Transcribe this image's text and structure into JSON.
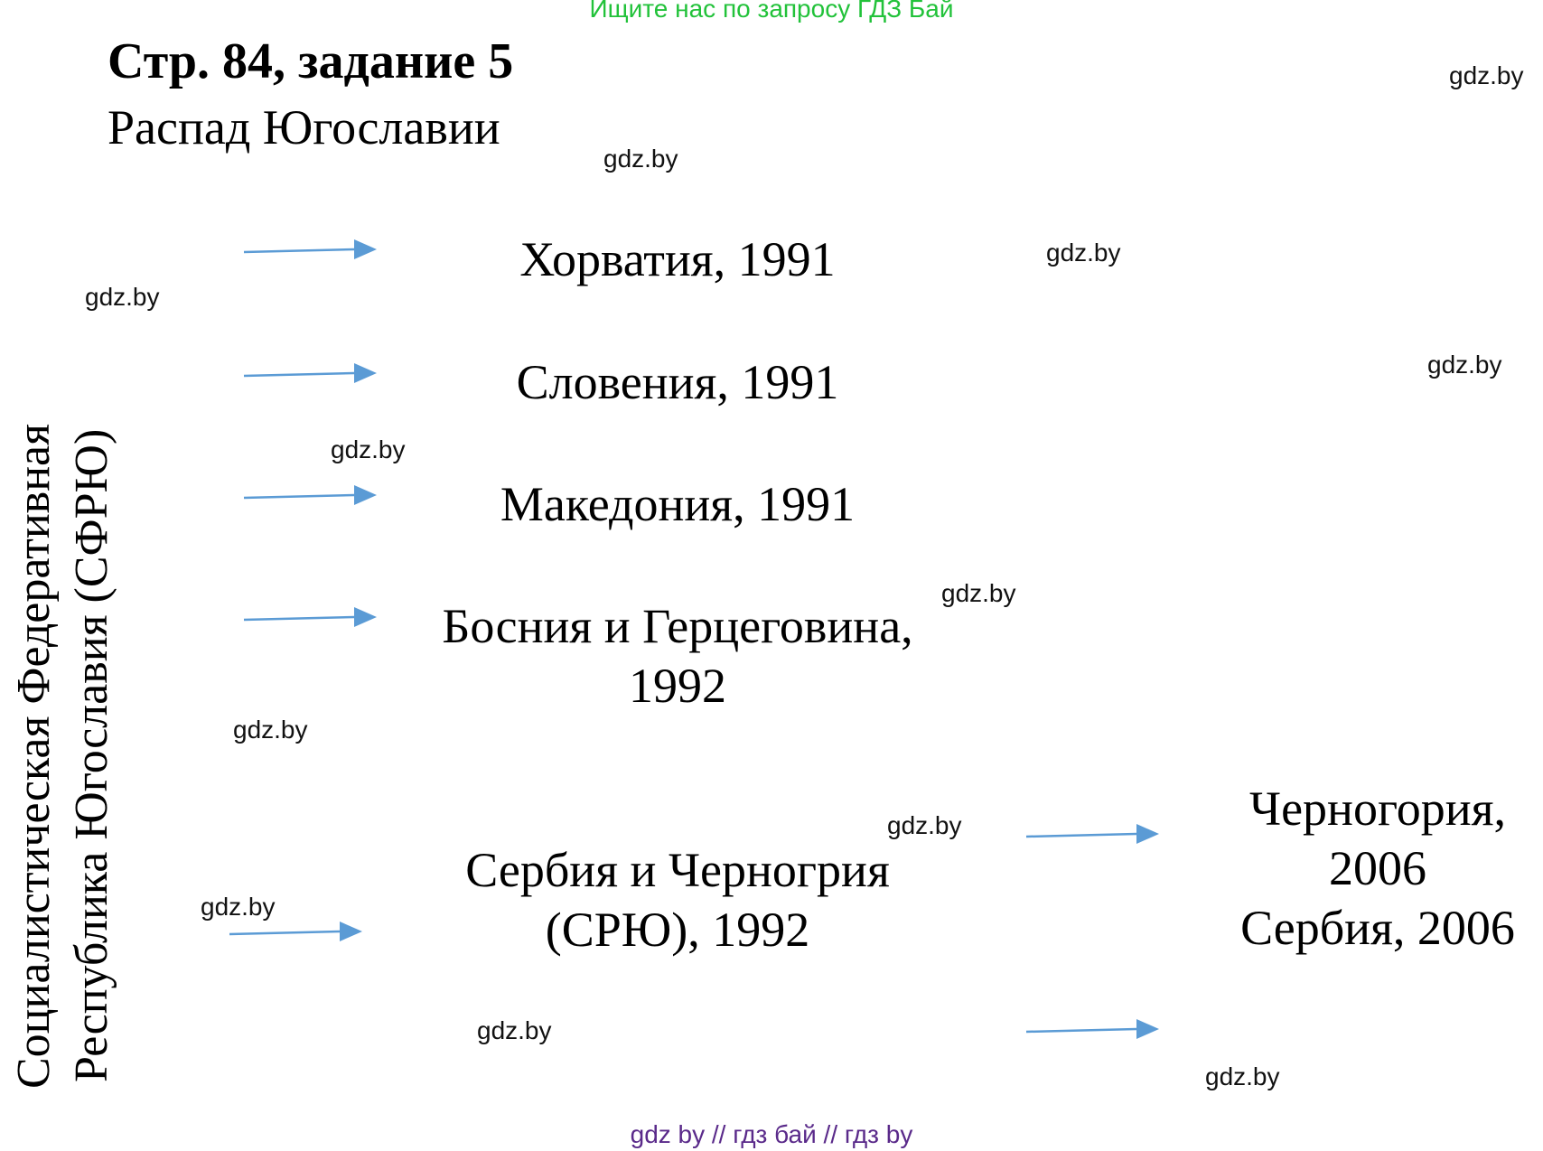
{
  "banner": "Ищите нас по запросу ГДЗ Бай",
  "title": "Стр. 84, задание 5",
  "subtitle": "Распад Югославии",
  "root_label": {
    "line1": "Социалистическая Федеративная",
    "line2": "Республика Югославия (СФРЮ)"
  },
  "states": [
    {
      "line1": "Хорватия, 1991"
    },
    {
      "line1": "Словения, 1991"
    },
    {
      "line1": "Македония, 1991"
    },
    {
      "line1": "Босния и Герцеговина,",
      "line2": "1992"
    },
    {
      "line1": "Сербия и Черногрия",
      "line2": "(СРЮ), 1992"
    }
  ],
  "successors": {
    "line1": "Черногория,",
    "line2": "2006",
    "line3": "Сербия, 2006"
  },
  "watermark": "gdz.by",
  "footer": "gdz by  //  гдз бай  //  гдз by",
  "colors": {
    "arrow": "#5b9bd5",
    "banner": "#22c23a",
    "footer": "#5a2a8a"
  }
}
